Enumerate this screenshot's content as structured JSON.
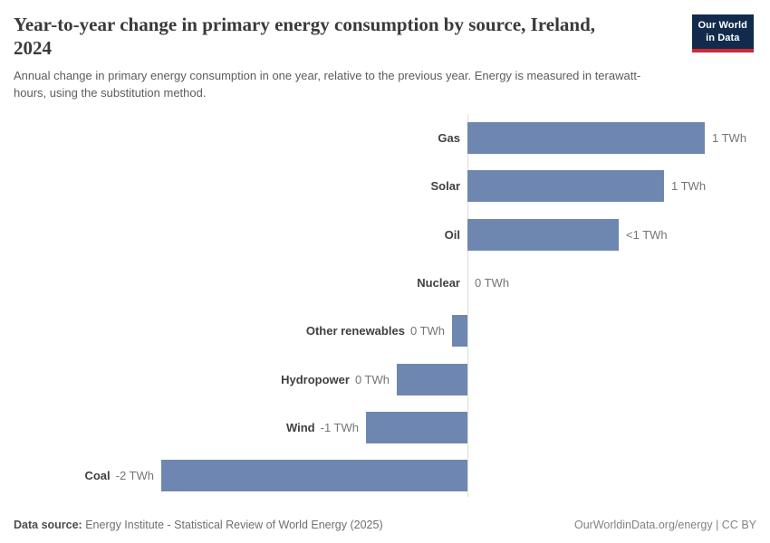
{
  "logo": {
    "line1": "Our World",
    "line2": "in Data",
    "bg_color": "#122b4d",
    "accent_color": "#cc2936"
  },
  "chart_data": {
    "type": "bar",
    "orientation": "horizontal",
    "title": "Year-to-year change in primary energy consumption by source, Ireland, 2024",
    "subtitle": "Annual change in primary energy consumption in one year, relative to the previous year. Energy is measured in terawatt-hours, using the substitution method.",
    "unit": "TWh",
    "categories": [
      "Gas",
      "Solar",
      "Oil",
      "Nuclear",
      "Other renewables",
      "Hydropower",
      "Wind",
      "Coal"
    ],
    "values_twh": [
      1.24,
      1.03,
      0.79,
      0,
      -0.08,
      -0.37,
      -0.53,
      -1.6
    ],
    "value_labels": [
      "1 TWh",
      "1 TWh",
      "<1 TWh",
      "0 TWh",
      "0 TWh",
      "0 TWh",
      "-1 TWh",
      "-2 TWh"
    ],
    "xlim_twh": [
      -1.7,
      1.6
    ],
    "grid": false,
    "legend": "none",
    "bar_color": "#6e87b0",
    "zero_line_color": "#dedede",
    "category_label_color": "#404040",
    "value_label_color": "#757575"
  },
  "footer": {
    "source_label": "Data source:",
    "source_text": "Energy Institute - Statistical Review of World Energy (2025)",
    "right_text": "OurWorldinData.org/energy | CC BY"
  }
}
